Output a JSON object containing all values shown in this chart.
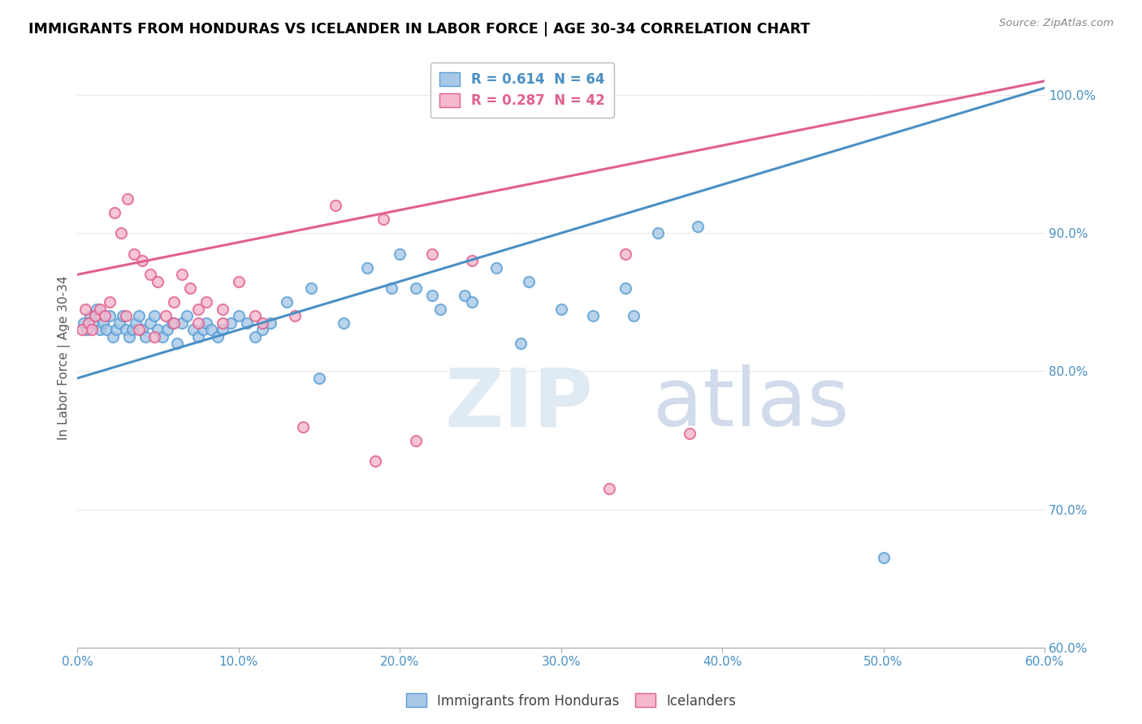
{
  "title": "IMMIGRANTS FROM HONDURAS VS ICELANDER IN LABOR FORCE | AGE 30-34 CORRELATION CHART",
  "source_text": "Source: ZipAtlas.com",
  "ylabel": "In Labor Force | Age 30-34",
  "legend_r1": "R = 0.614",
  "legend_n1": "N = 64",
  "legend_r2": "R = 0.287",
  "legend_n2": "N = 42",
  "blue_color": "#a8c8e8",
  "blue_edge_color": "#5a9fd4",
  "pink_color": "#f5b8cc",
  "pink_edge_color": "#e06090",
  "blue_line_color": "#4a90c4",
  "pink_line_color": "#e06090",
  "xlim": [
    0.0,
    60.0
  ],
  "ylim": [
    60.0,
    102.0
  ],
  "yticks": [
    60.0,
    70.0,
    80.0,
    90.0,
    100.0
  ],
  "xticks": [
    0.0,
    10.0,
    20.0,
    30.0,
    40.0,
    50.0,
    60.0
  ],
  "blue_line_x0": 0.0,
  "blue_line_y0": 79.5,
  "blue_line_x1": 60.0,
  "blue_line_y1": 100.5,
  "pink_line_x0": 0.0,
  "pink_line_y0": 87.0,
  "pink_line_x1": 60.0,
  "pink_line_y1": 101.0,
  "blue_x": [
    0.4,
    0.6,
    0.8,
    1.0,
    1.2,
    1.4,
    1.6,
    1.8,
    2.0,
    2.2,
    2.4,
    2.6,
    2.8,
    3.0,
    3.2,
    3.4,
    3.6,
    3.8,
    4.0,
    4.2,
    4.5,
    4.8,
    5.0,
    5.3,
    5.6,
    5.9,
    6.2,
    6.5,
    6.8,
    7.2,
    7.5,
    7.8,
    8.0,
    8.3,
    8.7,
    9.0,
    9.5,
    10.0,
    10.5,
    11.0,
    11.5,
    12.0,
    13.0,
    14.5,
    15.0,
    16.5,
    18.0,
    19.5,
    21.0,
    22.5,
    24.0,
    26.0,
    28.0,
    30.0,
    32.0,
    34.0,
    36.0,
    20.0,
    22.0,
    24.5,
    27.5,
    34.5,
    38.5,
    50.0
  ],
  "blue_y": [
    83.5,
    83.0,
    84.0,
    83.5,
    84.5,
    83.0,
    83.5,
    83.0,
    84.0,
    82.5,
    83.0,
    83.5,
    84.0,
    83.0,
    82.5,
    83.0,
    83.5,
    84.0,
    83.0,
    82.5,
    83.5,
    84.0,
    83.0,
    82.5,
    83.0,
    83.5,
    82.0,
    83.5,
    84.0,
    83.0,
    82.5,
    83.0,
    83.5,
    83.0,
    82.5,
    83.0,
    83.5,
    84.0,
    83.5,
    82.5,
    83.0,
    83.5,
    85.0,
    86.0,
    79.5,
    83.5,
    87.5,
    86.0,
    86.0,
    84.5,
    85.5,
    87.5,
    86.5,
    84.5,
    84.0,
    86.0,
    90.0,
    88.5,
    85.5,
    85.0,
    82.0,
    84.0,
    90.5,
    66.5
  ],
  "pink_x": [
    0.3,
    0.5,
    0.7,
    0.9,
    1.1,
    1.4,
    1.7,
    2.0,
    2.3,
    2.7,
    3.1,
    3.5,
    4.0,
    4.5,
    5.0,
    5.5,
    6.0,
    6.5,
    7.0,
    7.5,
    8.0,
    9.0,
    10.0,
    11.5,
    13.5,
    16.0,
    19.0,
    22.0,
    24.5,
    3.0,
    3.8,
    4.8,
    6.0,
    7.5,
    9.0,
    11.0,
    14.0,
    18.5,
    21.0,
    34.0,
    38.0,
    33.0
  ],
  "pink_y": [
    83.0,
    84.5,
    83.5,
    83.0,
    84.0,
    84.5,
    84.0,
    85.0,
    91.5,
    90.0,
    92.5,
    88.5,
    88.0,
    87.0,
    86.5,
    84.0,
    85.0,
    87.0,
    86.0,
    84.5,
    85.0,
    84.5,
    86.5,
    83.5,
    84.0,
    92.0,
    91.0,
    88.5,
    88.0,
    84.0,
    83.0,
    82.5,
    83.5,
    83.5,
    83.5,
    84.0,
    76.0,
    73.5,
    75.0,
    88.5,
    75.5,
    71.5
  ]
}
